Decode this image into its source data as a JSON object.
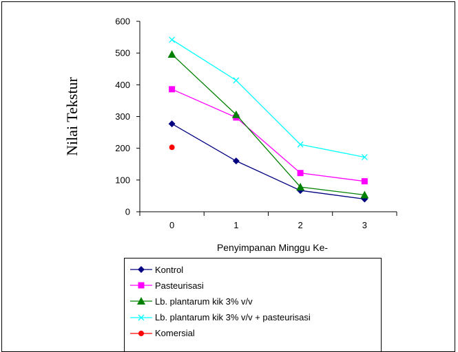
{
  "chart_data": {
    "type": "line",
    "title": "",
    "xlabel": "Penyimpanan Minggu Ke-",
    "ylabel": "Nilai Tekstur",
    "x_ticks": [
      "0",
      "1",
      "2",
      "3"
    ],
    "y_ticks": [
      "0",
      "100",
      "200",
      "300",
      "400",
      "500",
      "600"
    ],
    "ylim": [
      0,
      600
    ],
    "grid": false,
    "legend_position": "bottom",
    "series": [
      {
        "name": "Kontrol",
        "color": "#000080",
        "marker": "diamond",
        "x": [
          0,
          1,
          2,
          3
        ],
        "values": [
          277,
          160,
          67,
          40
        ]
      },
      {
        "name": "Pasteurisasi",
        "color": "#ff00ff",
        "marker": "square",
        "x": [
          0,
          1,
          2,
          3
        ],
        "values": [
          386,
          297,
          122,
          96
        ]
      },
      {
        "name": "Lb. plantarum kik 3% v/v",
        "color": "#008000",
        "marker": "triangle",
        "x": [
          0,
          1,
          2,
          3
        ],
        "values": [
          496,
          306,
          78,
          53
        ]
      },
      {
        "name": "Lb. plantarum kik 3% v/v + pasteurisasi",
        "color": "#00ffff",
        "marker": "x",
        "x": [
          0,
          1,
          2,
          3
        ],
        "values": [
          542,
          414,
          212,
          172
        ]
      },
      {
        "name": "Komersial",
        "color": "#ff0000",
        "marker": "circle",
        "x": [
          0
        ],
        "values": [
          203
        ]
      }
    ]
  }
}
